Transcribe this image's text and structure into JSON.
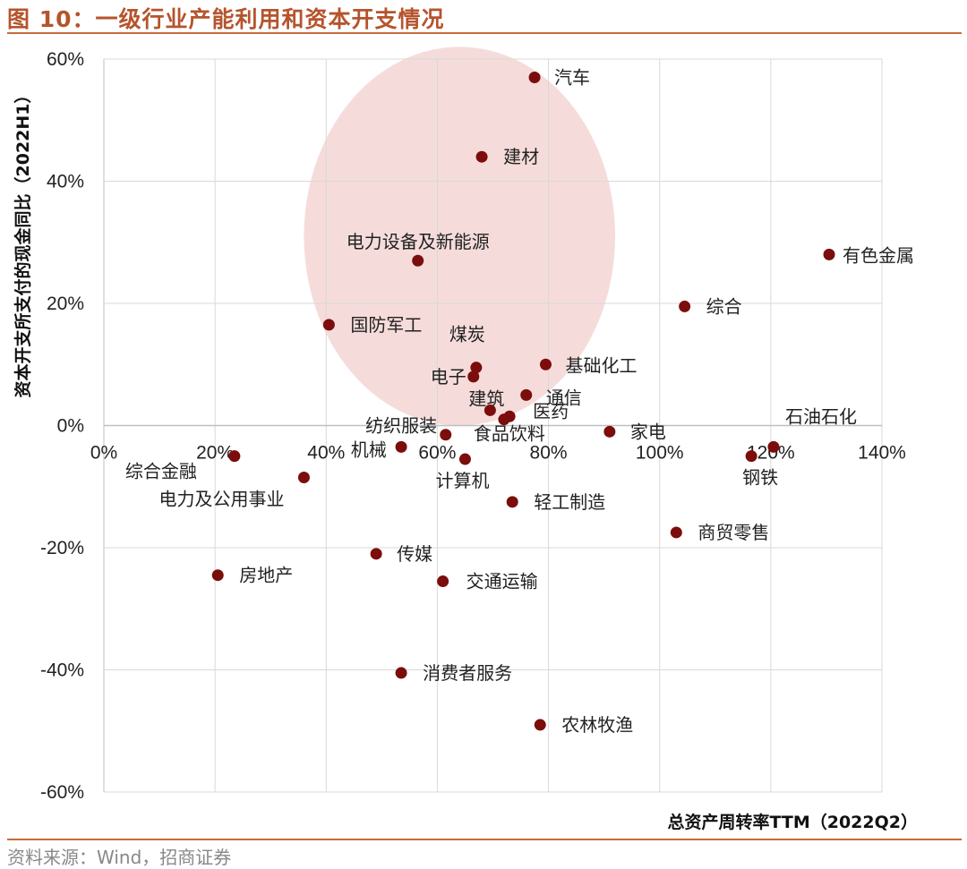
{
  "figure_title": "图 10：一级行业产能利用和资本开支情况",
  "source_note": "资料来源：Wind，招商证券",
  "colors": {
    "title": "#b5542c",
    "rule": "#c96a3d",
    "point": "#7b0d0d",
    "highlight": "#f2d3d1",
    "grid": "#d9d9d9",
    "axis": "#bfbfbf"
  },
  "chart_data": {
    "type": "scatter",
    "title": "",
    "xlabel": "总资产周转率TTM（2022Q2）",
    "ylabel": "资本开支所支付的现金同比（2022H1）",
    "xlim": [
      0,
      140
    ],
    "ylim": [
      -60,
      60
    ],
    "x_ticks": [
      "0%",
      "20%",
      "40%",
      "60%",
      "80%",
      "100%",
      "120%",
      "140%"
    ],
    "y_ticks": [
      "60%",
      "40%",
      "20%",
      "0%",
      "-20%",
      "-40%",
      "-60%"
    ],
    "grid": true,
    "highlight_ellipse": {
      "center_x": 64,
      "center_y": 31,
      "radius_x": 28,
      "radius_y": 31
    },
    "points": [
      {
        "label": "汽车",
        "x": 77.5,
        "y": 57
      },
      {
        "label": "建材",
        "x": 68,
        "y": 44
      },
      {
        "label": "电力设备及新能源",
        "x": 56.5,
        "y": 27
      },
      {
        "label": "有色金属",
        "x": 130.5,
        "y": 28
      },
      {
        "label": "综合",
        "x": 104.5,
        "y": 19.5
      },
      {
        "label": "国防军工",
        "x": 40.5,
        "y": 16.5
      },
      {
        "label": "煤炭",
        "x": 67,
        "y": 9.5
      },
      {
        "label": "电子",
        "x": 66.5,
        "y": 8
      },
      {
        "label": "基础化工",
        "x": 79.5,
        "y": 10
      },
      {
        "label": "通信",
        "x": 76,
        "y": 5
      },
      {
        "label": "建筑",
        "x": 69.5,
        "y": 2.5
      },
      {
        "label": "医药",
        "x": 73,
        "y": 1.5
      },
      {
        "label": "食品饮料",
        "x": 72,
        "y": 1
      },
      {
        "label": "家电",
        "x": 91,
        "y": -1
      },
      {
        "label": "纺织服装",
        "x": 53.5,
        "y": -3.5
      },
      {
        "label": "石油石化",
        "x": 120.5,
        "y": -3.5
      },
      {
        "label": "钢铁",
        "x": 116.5,
        "y": -5
      },
      {
        "label": "综合金融",
        "x": 23.5,
        "y": -5
      },
      {
        "label": "计算机",
        "x": 65,
        "y": -5.5
      },
      {
        "label": "机械",
        "x": 61.5,
        "y": -1.5
      },
      {
        "label": "电力及公用事业",
        "x": 36,
        "y": -8.5
      },
      {
        "label": "轻工制造",
        "x": 73.5,
        "y": -12.5
      },
      {
        "label": "商贸零售",
        "x": 103,
        "y": -17.5
      },
      {
        "label": "传媒",
        "x": 49,
        "y": -21
      },
      {
        "label": "房地产",
        "x": 20.5,
        "y": -24.5
      },
      {
        "label": "交通运输",
        "x": 61,
        "y": -25.5
      },
      {
        "label": "消费者服务",
        "x": 53.5,
        "y": -40.5
      },
      {
        "label": "农林牧渔",
        "x": 78.5,
        "y": -49
      }
    ]
  }
}
